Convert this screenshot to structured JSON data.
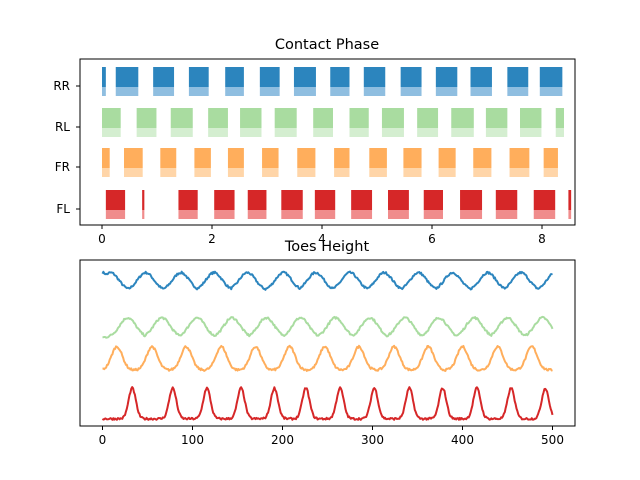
{
  "chart_data": [
    {
      "type": "broken_bar",
      "title": "Contact Phase",
      "xlabel": "",
      "ylabel": "",
      "xlim": [
        -0.4,
        8.6
      ],
      "x_ticks": [
        "0",
        "2",
        "4",
        "6",
        "8"
      ],
      "x_tick_values": [
        0,
        2,
        4,
        6,
        8
      ],
      "legs": [
        "FL",
        "FR",
        "RL",
        "RR"
      ],
      "series": [
        {
          "leg": "FL",
          "color_main": "#d62728",
          "color_light": "#f08c8c",
          "contacts": [
            [
              0.07,
              0.42
            ],
            [
              0.73,
              0.77
            ],
            [
              1.39,
              1.74
            ],
            [
              2.04,
              2.41
            ],
            [
              2.65,
              2.99
            ],
            [
              3.26,
              3.65
            ],
            [
              3.87,
              4.24
            ],
            [
              4.53,
              4.91
            ],
            [
              5.2,
              5.58
            ],
            [
              5.85,
              6.2
            ],
            [
              6.51,
              6.91
            ],
            [
              7.16,
              7.55
            ],
            [
              7.85,
              8.24
            ],
            [
              8.48,
              8.53
            ]
          ]
        },
        {
          "leg": "FR",
          "color_main": "#ffae5c",
          "color_light": "#ffd5a8",
          "contacts": [
            [
              0.0,
              0.14
            ],
            [
              0.4,
              0.74
            ],
            [
              1.06,
              1.35
            ],
            [
              1.68,
              1.98
            ],
            [
              2.29,
              2.58
            ],
            [
              2.91,
              3.21
            ],
            [
              3.55,
              3.88
            ],
            [
              4.22,
              4.5
            ],
            [
              4.86,
              5.18
            ],
            [
              5.48,
              5.81
            ],
            [
              6.12,
              6.43
            ],
            [
              6.75,
              7.08
            ],
            [
              7.41,
              7.77
            ],
            [
              8.03,
              8.29
            ]
          ]
        },
        {
          "leg": "RL",
          "color_main": "#a9dca0",
          "color_light": "#d4eed0",
          "contacts": [
            [
              0.0,
              0.34
            ],
            [
              0.63,
              0.99
            ],
            [
              1.25,
              1.65
            ],
            [
              1.93,
              2.29
            ],
            [
              2.51,
              2.9
            ],
            [
              3.14,
              3.54
            ],
            [
              3.84,
              4.2
            ],
            [
              4.5,
              4.85
            ],
            [
              5.09,
              5.49
            ],
            [
              5.73,
              6.11
            ],
            [
              6.35,
              6.76
            ],
            [
              6.98,
              7.37
            ],
            [
              7.6,
              7.99
            ],
            [
              8.25,
              8.4
            ]
          ]
        },
        {
          "leg": "RR",
          "color_main": "#2c85be",
          "color_light": "#8fbee0",
          "contacts": [
            [
              0.0,
              0.07
            ],
            [
              0.25,
              0.66
            ],
            [
              0.93,
              1.31
            ],
            [
              1.58,
              1.94
            ],
            [
              2.24,
              2.58
            ],
            [
              2.87,
              3.23
            ],
            [
              3.49,
              3.89
            ],
            [
              4.15,
              4.5
            ],
            [
              4.76,
              5.15
            ],
            [
              5.43,
              5.81
            ],
            [
              6.07,
              6.46
            ],
            [
              6.7,
              7.09
            ],
            [
              7.37,
              7.75
            ],
            [
              7.96,
              8.37
            ]
          ]
        }
      ]
    },
    {
      "type": "line",
      "title": "Toes Height",
      "xlabel": "",
      "ylabel": "",
      "xlim": [
        -25,
        525
      ],
      "x_ticks": [
        "0",
        "100",
        "200",
        "300",
        "400",
        "500"
      ],
      "x_tick_values": [
        0,
        100,
        200,
        300,
        400,
        500
      ],
      "y_ticks_visible": false,
      "series": [
        {
          "leg": "RR",
          "color": "#2c85be",
          "offset": 3.55,
          "amplitude": 0.5,
          "peaks": [
            0,
            9,
            48,
            87,
            124,
            161,
            201,
            237,
            275,
            313,
            351,
            389,
            428,
            465,
            503
          ]
        },
        {
          "leg": "RL",
          "color": "#a9dca0",
          "offset": 2.25,
          "amplitude": 0.55,
          "peaks": [
            28,
            66,
            105,
            144,
            182,
            220,
            259,
            297,
            336,
            374,
            413,
            450,
            489
          ]
        },
        {
          "leg": "FR",
          "color": "#ffae5c",
          "offset": 1.35,
          "amplitude": 0.65,
          "peaks": [
            16,
            55,
            93,
            132,
            170,
            208,
            247,
            285,
            324,
            362,
            400,
            439,
            477
          ]
        },
        {
          "leg": "FL",
          "color": "#d62728",
          "offset": 0.0,
          "amplitude": 0.85,
          "peaks": [
            33,
            78,
            116,
            154,
            191,
            226,
            264,
            302,
            341,
            378,
            416,
            454,
            492
          ]
        }
      ]
    }
  ]
}
